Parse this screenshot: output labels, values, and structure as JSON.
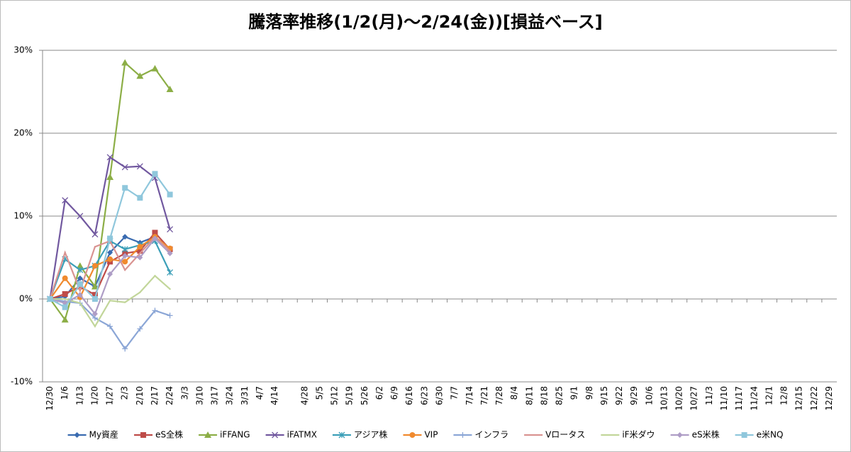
{
  "chart_data": {
    "type": "line",
    "title": "騰落率推移(1/2(月)～2/24(金))[損益ベース]",
    "categories": [
      "12/30",
      "1/6",
      "1/13",
      "1/20",
      "1/27",
      "2/3",
      "2/10",
      "2/17",
      "2/24",
      "3/3",
      "3/10",
      "3/17",
      "3/24",
      "3/31",
      "4/7",
      "4/14",
      null,
      "4/28",
      "5/5",
      "5/12",
      "5/19",
      "5/26",
      "6/2",
      "6/9",
      "6/16",
      "6/23",
      "6/30",
      "7/7",
      "7/14",
      "7/21",
      "7/28",
      "8/4",
      "8/11",
      "8/18",
      "8/25",
      "9/1",
      "9/8",
      "9/15",
      "9/22",
      "9/29",
      "10/6",
      "10/13",
      "10/20",
      "10/27",
      "11/3",
      "11/10",
      "11/17",
      "11/24",
      "12/1",
      "12/8",
      "12/15",
      "12/22",
      "12/29"
    ],
    "ylim": [
      -10,
      30
    ],
    "yticks": [
      {
        "value": -10,
        "label": "-10%"
      },
      {
        "value": 0,
        "label": "0%"
      },
      {
        "value": 10,
        "label": "10%"
      },
      {
        "value": 20,
        "label": "20%"
      },
      {
        "value": 30,
        "label": "30%"
      }
    ],
    "grid": true,
    "legend": "bottom",
    "series": [
      {
        "name": "My資産",
        "color": "#3a6bb0",
        "marker": "diamond",
        "values": [
          0,
          0.3,
          2.5,
          1.5,
          5.6,
          7.5,
          6.8,
          7.5,
          6.0,
          null,
          null,
          null,
          null,
          null,
          null,
          null,
          null,
          null,
          null,
          null,
          null,
          null,
          null,
          null,
          null,
          null,
          null,
          null,
          null,
          null,
          null,
          null,
          null,
          null,
          null,
          null,
          null,
          null,
          null,
          null,
          null,
          null,
          null,
          null,
          null,
          null,
          null,
          null,
          null,
          null,
          null,
          null,
          null
        ]
      },
      {
        "name": "eS全株",
        "color": "#be4b48",
        "marker": "square",
        "values": [
          0,
          0.6,
          1.5,
          0.5,
          4.5,
          5.5,
          5.8,
          8.0,
          6.0,
          null,
          null,
          null,
          null,
          null,
          null,
          null,
          null,
          null,
          null,
          null,
          null,
          null,
          null,
          null,
          null,
          null,
          null,
          null,
          null,
          null,
          null,
          null,
          null,
          null,
          null,
          null,
          null,
          null,
          null,
          null,
          null,
          null,
          null,
          null,
          null,
          null,
          null,
          null,
          null,
          null,
          null,
          null,
          null
        ]
      },
      {
        "name": "iFFANG",
        "color": "#8cae46",
        "marker": "triangle",
        "values": [
          0,
          -2.5,
          4.0,
          1.5,
          14.7,
          28.5,
          26.9,
          27.8,
          25.3,
          null,
          null,
          null,
          null,
          null,
          null,
          null,
          null,
          null,
          null,
          null,
          null,
          null,
          null,
          null,
          null,
          null,
          null,
          null,
          null,
          null,
          null,
          null,
          null,
          null,
          null,
          null,
          null,
          null,
          null,
          null,
          null,
          null,
          null,
          null,
          null,
          null,
          null,
          null,
          null,
          null,
          null,
          null,
          null
        ]
      },
      {
        "name": "iFATMX",
        "color": "#71589f",
        "marker": "x",
        "values": [
          0,
          11.9,
          10.0,
          7.8,
          17.1,
          15.9,
          16.0,
          14.6,
          8.4,
          null,
          null,
          null,
          null,
          null,
          null,
          null,
          null,
          null,
          null,
          null,
          null,
          null,
          null,
          null,
          null,
          null,
          null,
          null,
          null,
          null,
          null,
          null,
          null,
          null,
          null,
          null,
          null,
          null,
          null,
          null,
          null,
          null,
          null,
          null,
          null,
          null,
          null,
          null,
          null,
          null,
          null,
          null,
          null
        ]
      },
      {
        "name": "アジア株",
        "color": "#3c9fb8",
        "marker": "asterisk",
        "values": [
          0,
          4.8,
          3.5,
          4.0,
          7.0,
          6.0,
          6.5,
          7.0,
          3.2,
          null,
          null,
          null,
          null,
          null,
          null,
          null,
          null,
          null,
          null,
          null,
          null,
          null,
          null,
          null,
          null,
          null,
          null,
          null,
          null,
          null,
          null,
          null,
          null,
          null,
          null,
          null,
          null,
          null,
          null,
          null,
          null,
          null,
          null,
          null,
          null,
          null,
          null,
          null,
          null,
          null,
          null,
          null,
          null
        ]
      },
      {
        "name": "VIP",
        "color": "#f08a2e",
        "marker": "circle",
        "values": [
          0,
          2.5,
          0.2,
          4.0,
          4.8,
          4.5,
          6.3,
          7.5,
          6.1,
          null,
          null,
          null,
          null,
          null,
          null,
          null,
          null,
          null,
          null,
          null,
          null,
          null,
          null,
          null,
          null,
          null,
          null,
          null,
          null,
          null,
          null,
          null,
          null,
          null,
          null,
          null,
          null,
          null,
          null,
          null,
          null,
          null,
          null,
          null,
          null,
          null,
          null,
          null,
          null,
          null,
          null,
          null,
          null
        ]
      },
      {
        "name": "インフラ",
        "color": "#8ba6d6",
        "marker": "plus",
        "values": [
          0,
          -0.3,
          -0.5,
          -2.3,
          -3.3,
          -6.0,
          -3.6,
          -1.4,
          -2.0,
          null,
          null,
          null,
          null,
          null,
          null,
          null,
          null,
          null,
          null,
          null,
          null,
          null,
          null,
          null,
          null,
          null,
          null,
          null,
          null,
          null,
          null,
          null,
          null,
          null,
          null,
          null,
          null,
          null,
          null,
          null,
          null,
          null,
          null,
          null,
          null,
          null,
          null,
          null,
          null,
          null,
          null,
          null,
          null
        ]
      },
      {
        "name": "Vロータス",
        "color": "#d99391",
        "marker": "none",
        "values": [
          0,
          5.6,
          1.0,
          6.3,
          7.0,
          3.5,
          5.5,
          7.5,
          5.8,
          null,
          null,
          null,
          null,
          null,
          null,
          null,
          null,
          null,
          null,
          null,
          null,
          null,
          null,
          null,
          null,
          null,
          null,
          null,
          null,
          null,
          null,
          null,
          null,
          null,
          null,
          null,
          null,
          null,
          null,
          null,
          null,
          null,
          null,
          null,
          null,
          null,
          null,
          null,
          null,
          null,
          null,
          null,
          null
        ]
      },
      {
        "name": "iF米ダウ",
        "color": "#c2d69a",
        "marker": "none",
        "values": [
          0,
          0.0,
          -0.5,
          -3.3,
          -0.2,
          -0.4,
          0.8,
          2.8,
          1.2,
          null,
          null,
          null,
          null,
          null,
          null,
          null,
          null,
          null,
          null,
          null,
          null,
          null,
          null,
          null,
          null,
          null,
          null,
          null,
          null,
          null,
          null,
          null,
          null,
          null,
          null,
          null,
          null,
          null,
          null,
          null,
          null,
          null,
          null,
          null,
          null,
          null,
          null,
          null,
          null,
          null,
          null,
          null,
          null
        ]
      },
      {
        "name": "eS米株",
        "color": "#ae9dc6",
        "marker": "diamond",
        "values": [
          0,
          -0.5,
          0.5,
          -1.8,
          3.0,
          5.2,
          5.0,
          7.3,
          5.5,
          null,
          null,
          null,
          null,
          null,
          null,
          null,
          null,
          null,
          null,
          null,
          null,
          null,
          null,
          null,
          null,
          null,
          null,
          null,
          null,
          null,
          null,
          null,
          null,
          null,
          null,
          null,
          null,
          null,
          null,
          null,
          null,
          null,
          null,
          null,
          null,
          null,
          null,
          null,
          null,
          null,
          null,
          null,
          null
        ]
      },
      {
        "name": "e米NQ",
        "color": "#8fc7dc",
        "marker": "square",
        "values": [
          0,
          -1.0,
          1.8,
          0.0,
          7.3,
          13.4,
          12.2,
          15.1,
          12.6,
          null,
          null,
          null,
          null,
          null,
          null,
          null,
          null,
          null,
          null,
          null,
          null,
          null,
          null,
          null,
          null,
          null,
          null,
          null,
          null,
          null,
          null,
          null,
          null,
          null,
          null,
          null,
          null,
          null,
          null,
          null,
          null,
          null,
          null,
          null,
          null,
          null,
          null,
          null,
          null,
          null,
          null,
          null,
          null
        ]
      }
    ]
  }
}
